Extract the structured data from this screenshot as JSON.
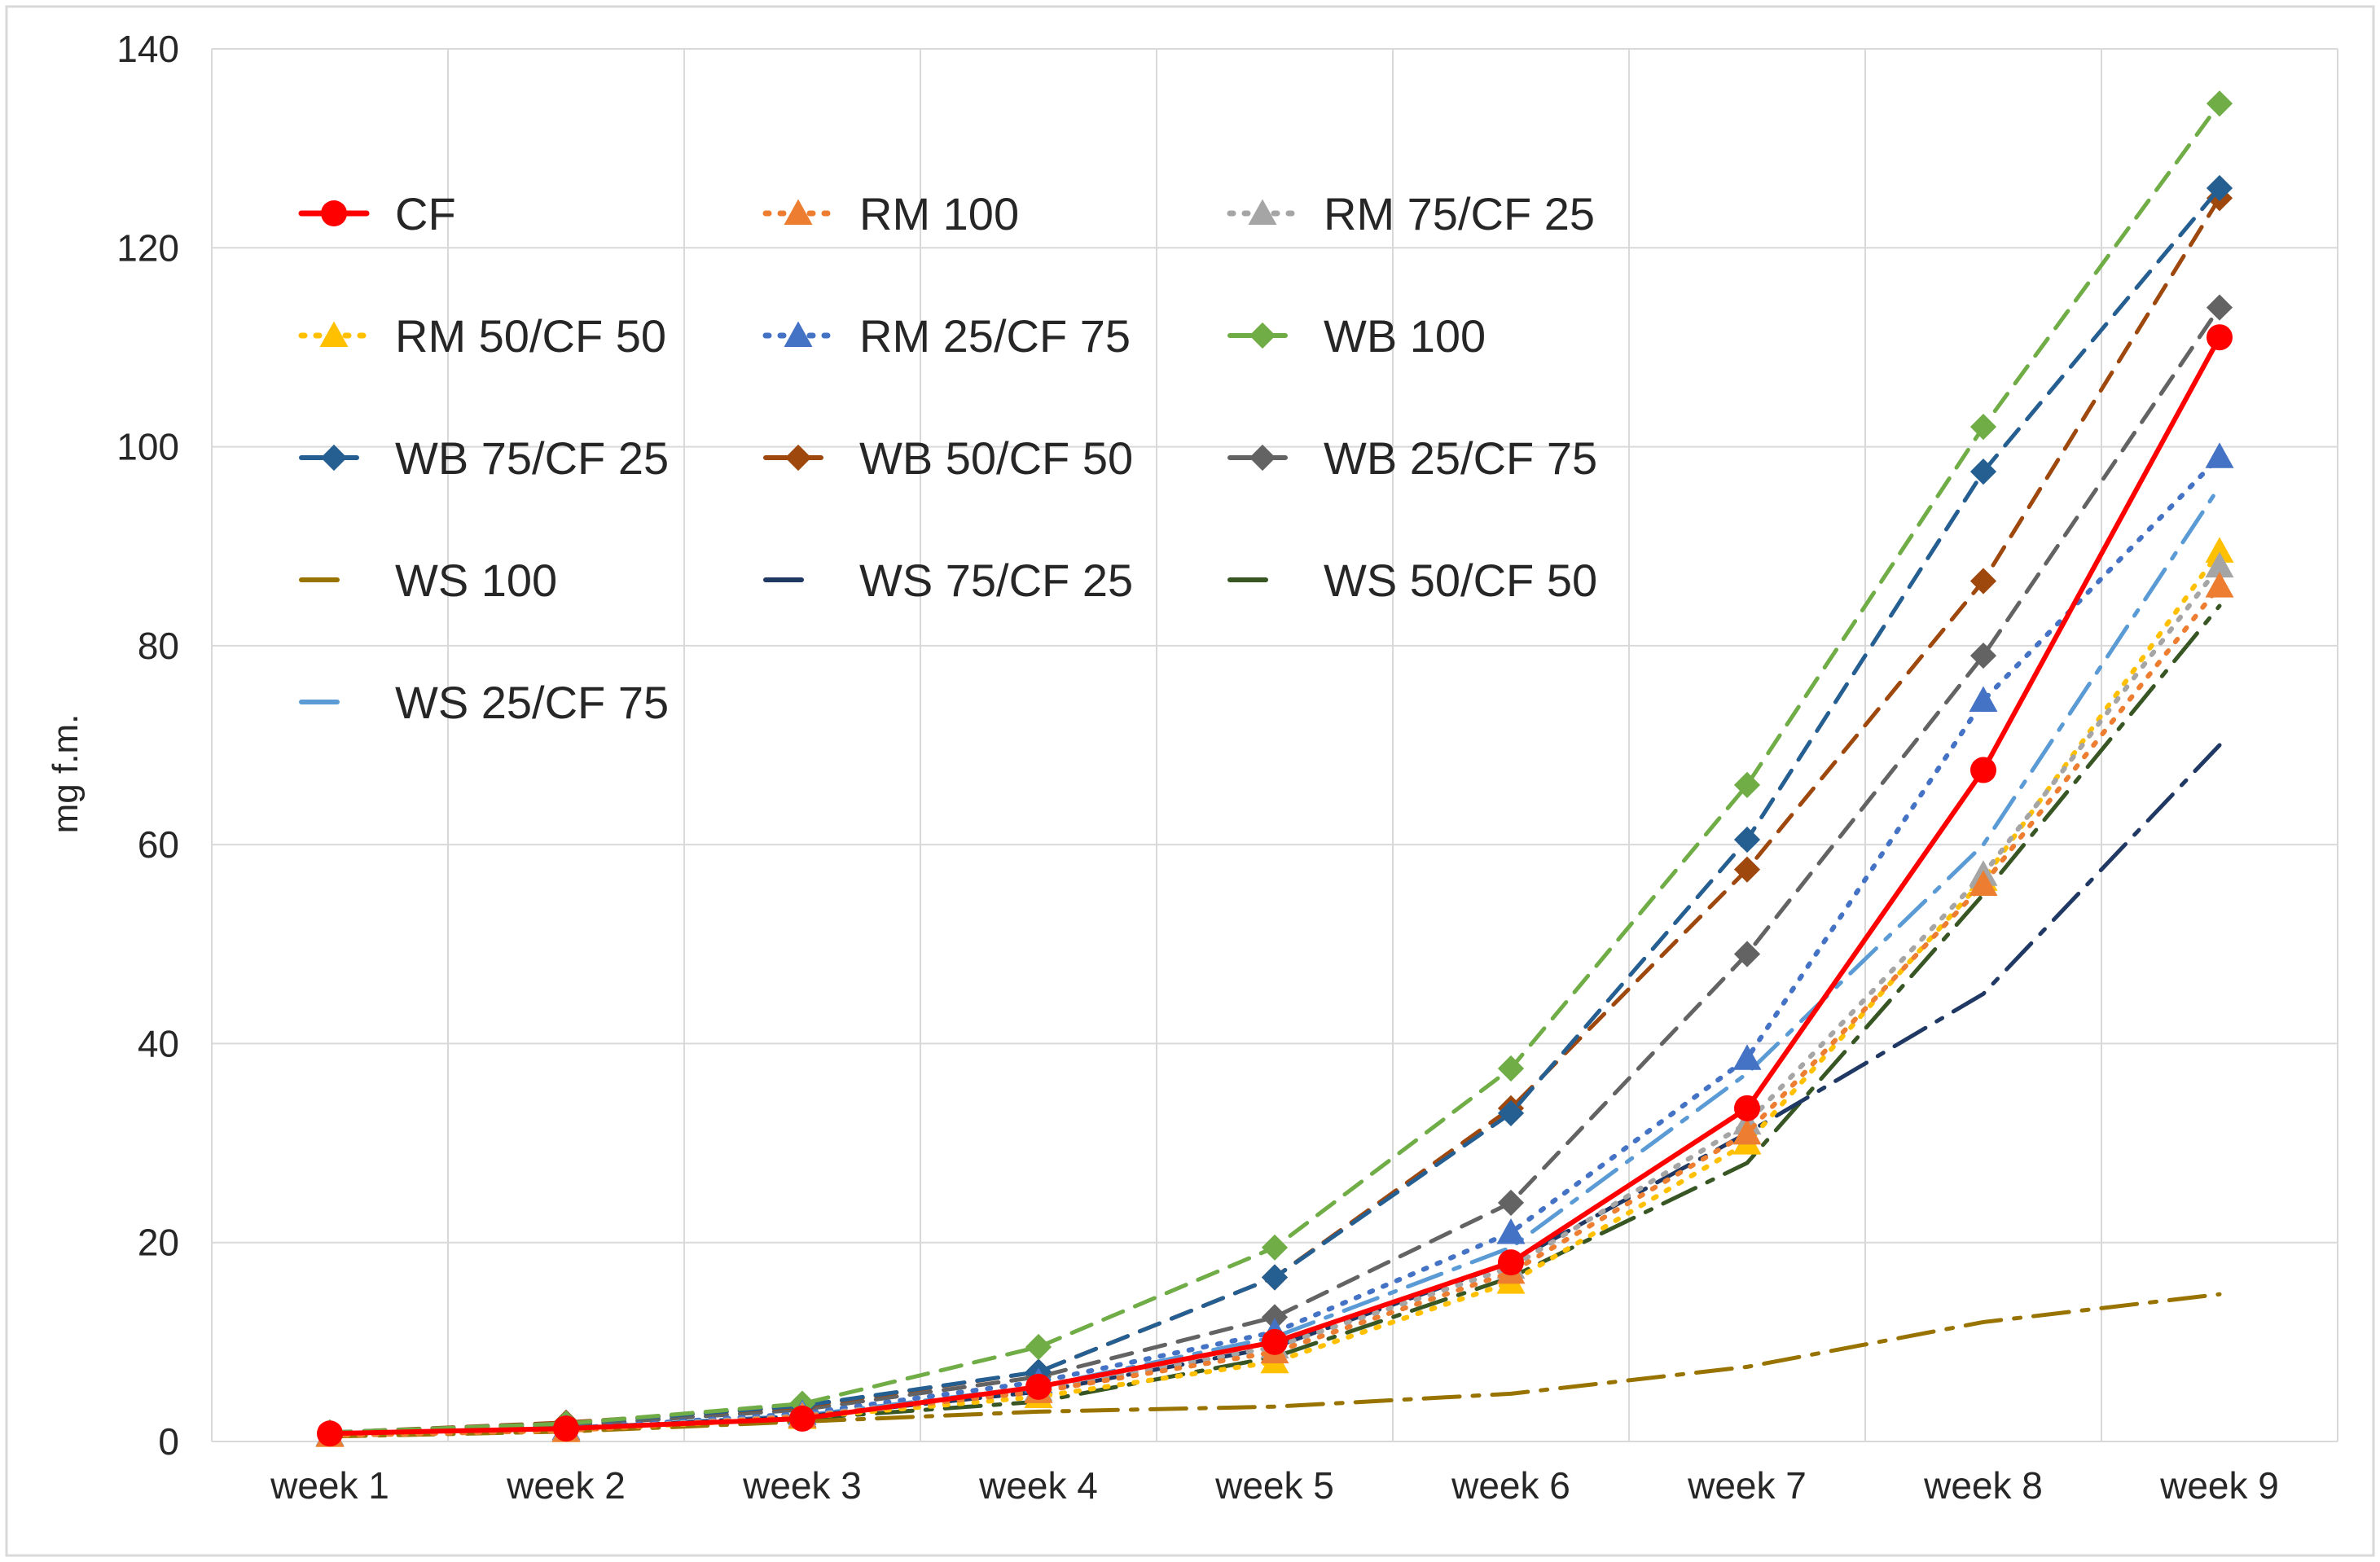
{
  "chart_data": {
    "type": "line",
    "title": "",
    "xlabel": "",
    "ylabel": "mg f.m.",
    "ylim": [
      0,
      140
    ],
    "ytick_step": 20,
    "grid": true,
    "legend_position": "top-left",
    "categories": [
      "week 1",
      "week 2",
      "week 3",
      "week 4",
      "week 5",
      "week 6",
      "week 7",
      "week 8",
      "week 9"
    ],
    "series": [
      {
        "name": "CF",
        "color": "#ff0000",
        "dash": "solid",
        "marker": "circle",
        "values": [
          0.8,
          1.3,
          2.3,
          5.5,
          10,
          18,
          33.5,
          67.5,
          111
        ]
      },
      {
        "name": "RM 100",
        "color": "#ed7d31",
        "dash": "dot",
        "marker": "triangle",
        "values": [
          0.6,
          1.1,
          2.5,
          5,
          9,
          17,
          31,
          56,
          86
        ]
      },
      {
        "name": "RM 75/CF 25",
        "color": "#a5a5a5",
        "dash": "dot",
        "marker": "triangle",
        "values": [
          0.7,
          1.2,
          2.6,
          5.2,
          9.5,
          17.5,
          32,
          57,
          88
        ]
      },
      {
        "name": "RM 50/CF 50",
        "color": "#ffc000",
        "dash": "dot",
        "marker": "triangle",
        "values": [
          0.6,
          1.1,
          2.4,
          4.5,
          8,
          16,
          30,
          56.5,
          89.5
        ]
      },
      {
        "name": "RM 25/CF 75",
        "color": "#4472c4",
        "dash": "dot",
        "marker": "triangle",
        "values": [
          0.7,
          1.3,
          2.8,
          6,
          11,
          21,
          38.5,
          74.5,
          99
        ]
      },
      {
        "name": "WB 100",
        "color": "#70ad47",
        "dash": "dash",
        "marker": "diamond",
        "values": [
          0.9,
          1.8,
          3.8,
          9.5,
          19.5,
          37.5,
          66,
          102,
          134.5
        ]
      },
      {
        "name": "WB 75/CF 25",
        "color": "#255e91",
        "dash": "dash",
        "marker": "diamond",
        "values": [
          0.9,
          1.8,
          3.6,
          7,
          16.5,
          33,
          60.5,
          97.5,
          126
        ]
      },
      {
        "name": "WB 50/CF 50",
        "color": "#9e480e",
        "dash": "dash",
        "marker": "diamond",
        "values": [
          0.9,
          1.9,
          3.5,
          7,
          16.5,
          33.5,
          57.5,
          86.5,
          125
        ]
      },
      {
        "name": "WB 25/CF 75",
        "color": "#636363",
        "dash": "dash",
        "marker": "diamond",
        "values": [
          0.8,
          1.6,
          3.2,
          6.5,
          12.5,
          24,
          49,
          79,
          114
        ]
      },
      {
        "name": "WS 100",
        "color": "#997300",
        "dash": "dashdot",
        "marker": "none",
        "values": [
          0.5,
          1,
          2,
          3,
          3.5,
          4.8,
          7.5,
          12,
          14.8
        ]
      },
      {
        "name": "WS 75/CF 25",
        "color": "#203864",
        "dash": "dashdot",
        "marker": "none",
        "values": [
          0.7,
          1.3,
          2.5,
          5,
          9.5,
          18,
          31,
          45,
          70
        ]
      },
      {
        "name": "WS 50/CF 50",
        "color": "#375623",
        "dash": "dashdot",
        "marker": "none",
        "values": [
          0.6,
          1.2,
          2.3,
          4,
          8.5,
          16.5,
          28,
          55,
          84
        ]
      },
      {
        "name": "WS 25/CF 75",
        "color": "#5b9bd5",
        "dash": "dashdot",
        "marker": "none",
        "values": [
          0.7,
          1.3,
          2.6,
          5.5,
          10.5,
          19.5,
          37,
          60,
          96
        ]
      }
    ]
  }
}
